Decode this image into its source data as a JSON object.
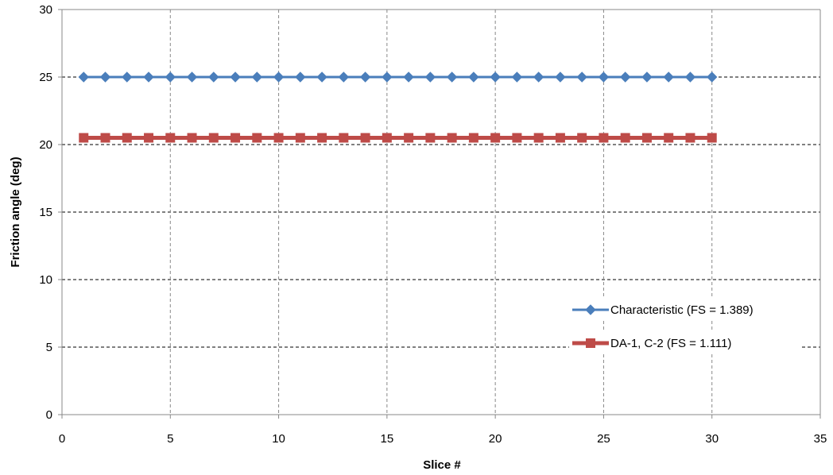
{
  "chart_data": {
    "type": "line",
    "xlabel": "Slice #",
    "ylabel": "Friction angle (deg)",
    "xlim": [
      0,
      35
    ],
    "ylim": [
      0,
      30
    ],
    "xticks": [
      0,
      5,
      10,
      15,
      20,
      25,
      30,
      35
    ],
    "yticks": [
      0,
      5,
      10,
      15,
      20,
      25,
      30
    ],
    "grid": true,
    "legend_position": "right",
    "series": [
      {
        "name": "Characteristic (FS = 1.389)",
        "color": "#4a7ebb",
        "marker": "diamond",
        "x": [
          1,
          2,
          3,
          4,
          5,
          6,
          7,
          8,
          9,
          10,
          11,
          12,
          13,
          14,
          15,
          16,
          17,
          18,
          19,
          20,
          21,
          22,
          23,
          24,
          25,
          26,
          27,
          28,
          29,
          30
        ],
        "y": [
          25,
          25,
          25,
          25,
          25,
          25,
          25,
          25,
          25,
          25,
          25,
          25,
          25,
          25,
          25,
          25,
          25,
          25,
          25,
          25,
          25,
          25,
          25,
          25,
          25,
          25,
          25,
          25,
          25,
          25
        ]
      },
      {
        "name": "DA-1, C-2 (FS = 1.111)",
        "color": "#be4b48",
        "marker": "square",
        "x": [
          1,
          2,
          3,
          4,
          5,
          6,
          7,
          8,
          9,
          10,
          11,
          12,
          13,
          14,
          15,
          16,
          17,
          18,
          19,
          20,
          21,
          22,
          23,
          24,
          25,
          26,
          27,
          28,
          29,
          30
        ],
        "y": [
          20.5,
          20.5,
          20.5,
          20.5,
          20.5,
          20.5,
          20.5,
          20.5,
          20.5,
          20.5,
          20.5,
          20.5,
          20.5,
          20.5,
          20.5,
          20.5,
          20.5,
          20.5,
          20.5,
          20.5,
          20.5,
          20.5,
          20.5,
          20.5,
          20.5,
          20.5,
          20.5,
          20.5,
          20.5,
          20.5
        ]
      }
    ]
  }
}
